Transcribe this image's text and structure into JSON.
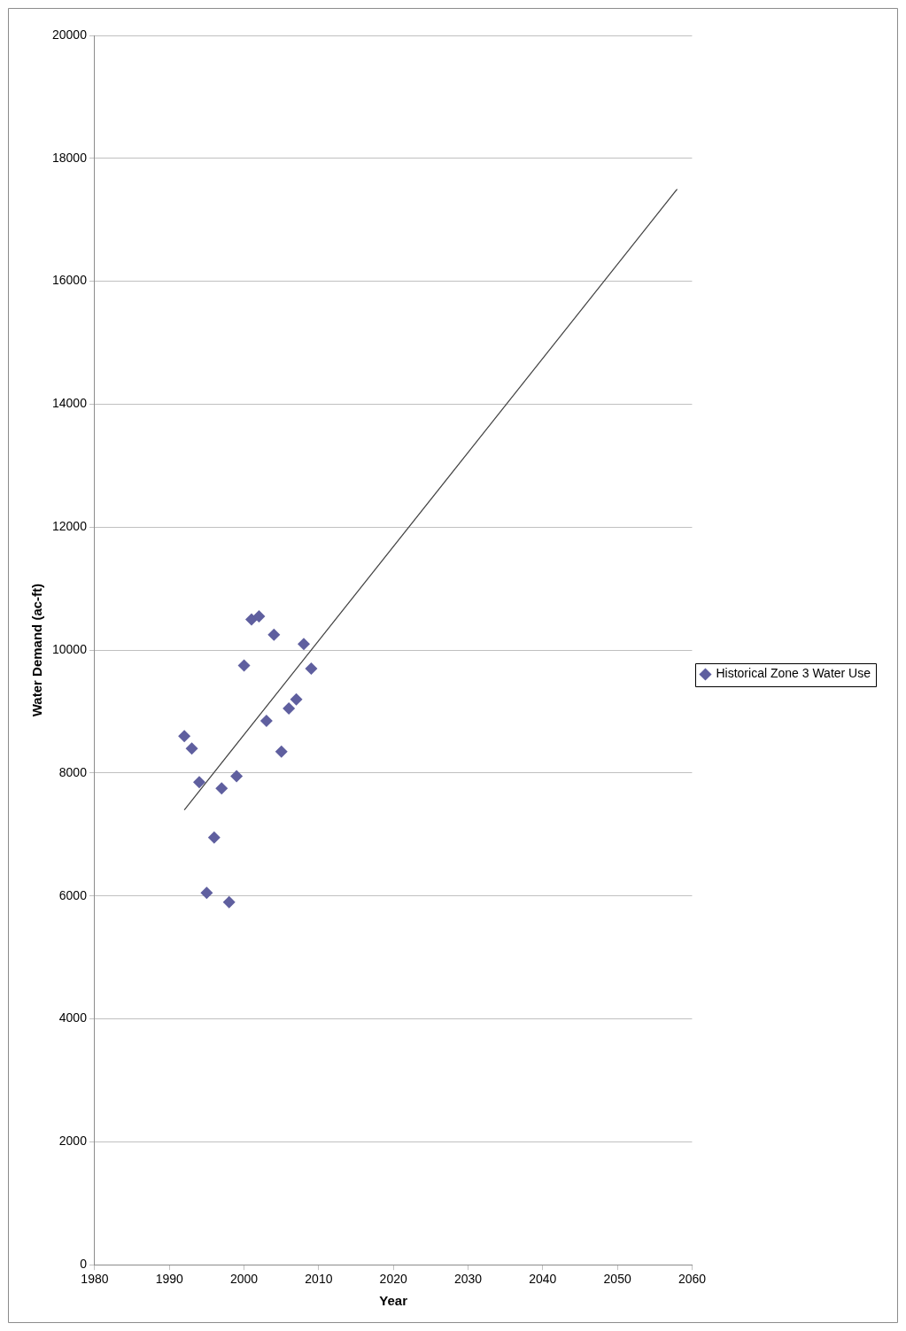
{
  "chart_data": {
    "type": "scatter",
    "xlabel": "Year",
    "ylabel": "Water Demand (ac-ft)",
    "xlim": [
      1980,
      2060
    ],
    "xticks": [
      1980,
      1990,
      2000,
      2010,
      2020,
      2030,
      2040,
      2050,
      2060
    ],
    "ylim": [
      0,
      20000
    ],
    "yticks": [
      0,
      2000,
      4000,
      6000,
      8000,
      10000,
      12000,
      14000,
      16000,
      18000,
      20000
    ],
    "grid": "y",
    "legend": "right",
    "marker": "diamond",
    "series": [
      {
        "name": "Historical Zone 3 Water Use",
        "color": "#5f5f9f",
        "x": [
          1992,
          1993,
          1994,
          1995,
          1996,
          1997,
          1998,
          1999,
          2000,
          2001,
          2002,
          2003,
          2004,
          2005,
          2006,
          2007,
          2008,
          2009
        ],
        "values": [
          8600,
          8400,
          7850,
          6050,
          6950,
          7750,
          5900,
          7950,
          9750,
          10500,
          10550,
          8850,
          10250,
          8350,
          9050,
          9200,
          10100,
          9700
        ]
      },
      {
        "color": "#404040",
        "type": "line",
        "marker": "none",
        "x": [
          1992,
          2058
        ],
        "values": [
          7400,
          17500
        ]
      }
    ]
  }
}
